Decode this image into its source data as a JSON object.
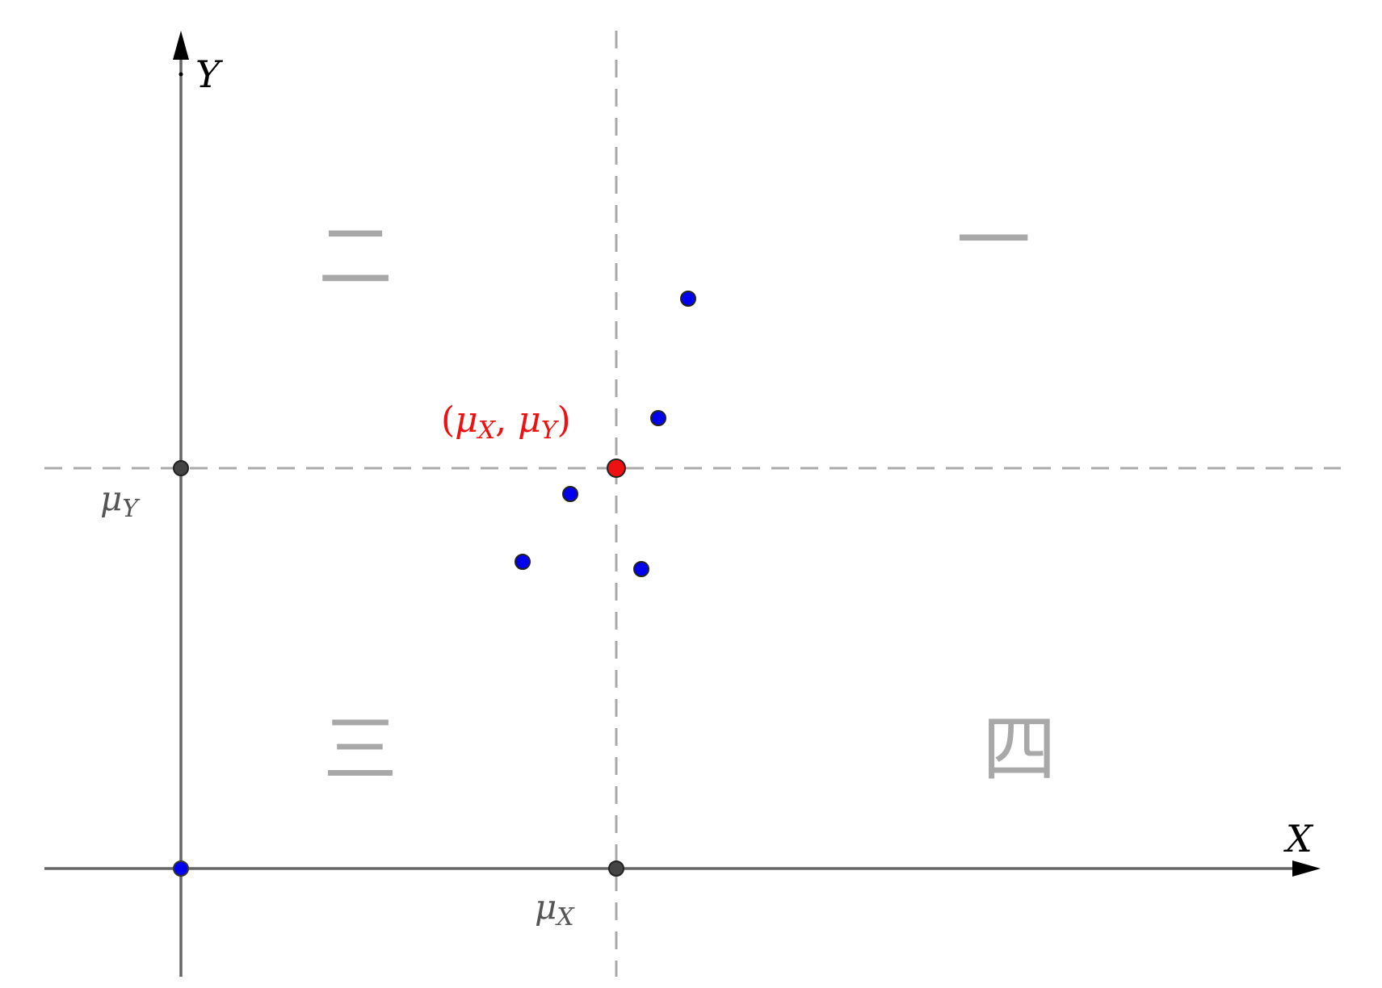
{
  "axes": {
    "x_label": "X",
    "y_label": "Y"
  },
  "marks": {
    "mu_x": {
      "base": "μ",
      "sub": "X"
    },
    "mu_y": {
      "base": "μ",
      "sub": "Y"
    },
    "mean_point": {
      "open": "(",
      "mu1": "μ",
      "sub1": "X",
      "comma": ", ",
      "mu2": "μ",
      "sub2": "Y",
      "close": ")"
    }
  },
  "quadrants": {
    "first": "一",
    "second": "二",
    "third": "三",
    "fourth": "四"
  },
  "colors": {
    "axis": "#666666",
    "guide": "#aaaaaa",
    "sample_point": "#0000ee",
    "mean_point": "#ee1111",
    "mark_point": "#444444",
    "quadrant_text": "#a8a8a8"
  }
}
